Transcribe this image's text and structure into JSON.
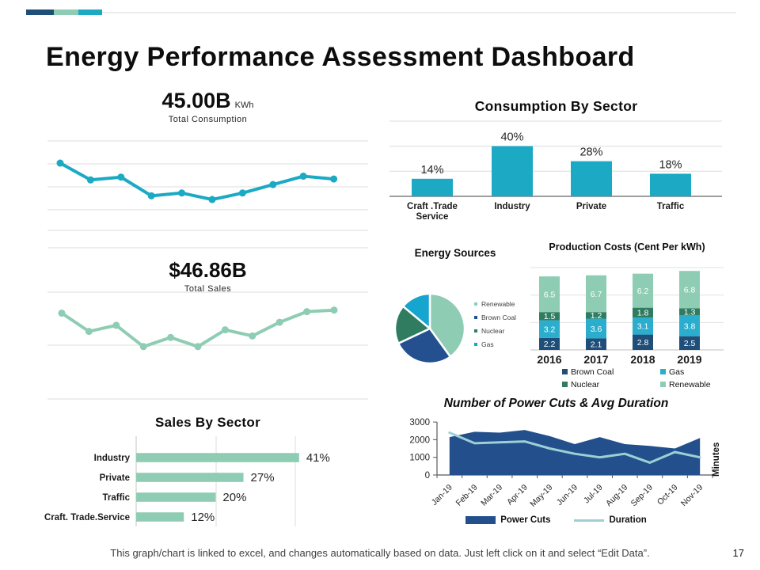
{
  "slide": {
    "title": "Energy Performance Assessment Dashboard",
    "footer_note": "This graph/chart is linked to excel, and changes automatically based on data. Just left click on it and select “Edit Data”.",
    "page_number": "17",
    "accent_bar_colors": [
      "#1f4e79",
      "#8ecdb3",
      "#1ba9c4"
    ]
  },
  "colors": {
    "teal": "#1ba9c4",
    "light_green": "#8ecdb3",
    "navy": "#23508c",
    "dark_navy": "#1f4e79",
    "dark_green": "#2f7c61",
    "cyan": "#16a5ce",
    "pale_teal": "#9cd0d4",
    "gridline": "#dcdcdc",
    "axis_gray": "#595959"
  },
  "chart_data": [
    {
      "id": "total_consumption_trend",
      "type": "line",
      "title": "45.00B",
      "unit": "KWh",
      "subtitle": "Total Consumption",
      "values": [
        72,
        54,
        57,
        37,
        40,
        33,
        40,
        49,
        58,
        55
      ],
      "scale": "relative-estimate 0-100 (sparkline, axis unlabeled)",
      "grid": "horizontal",
      "color": "#1ba9c4"
    },
    {
      "id": "consumption_by_sector",
      "type": "bar",
      "title": "Consumption By Sector",
      "categories": [
        "Craft .Trade Service",
        "Industry",
        "Private",
        "Traffic"
      ],
      "values": [
        14,
        40,
        28,
        18
      ],
      "labels": [
        "14%",
        "40%",
        "28%",
        "18%"
      ],
      "ylim": [
        0,
        60
      ],
      "grid": "horizontal every 20",
      "color": "#1ba9c4"
    },
    {
      "id": "total_sales_trend",
      "type": "line",
      "title": "$46.86B",
      "subtitle": "Total Sales",
      "values": [
        57,
        45,
        49,
        35,
        41,
        35,
        46,
        42,
        51,
        58,
        59
      ],
      "scale": "relative-estimate 0-100 (sparkline, axis unlabeled)",
      "grid": "horizontal",
      "color": "#8ecdb3"
    },
    {
      "id": "energy_sources",
      "type": "pie",
      "title": "Energy Sources",
      "labels": [
        "Renewable",
        "Brown Coal",
        "Nuclear",
        "Gas"
      ],
      "values": [
        40,
        28,
        18,
        14
      ],
      "scale": "percent-estimate from slice angles",
      "colors": [
        "#8ecdb3",
        "#24508f",
        "#2f7c61",
        "#16a5ce"
      ],
      "legend_position": "right"
    },
    {
      "id": "production_costs",
      "type": "bar",
      "stacked": true,
      "title": "Production Costs (Cent Per kWh)",
      "categories": [
        "2016",
        "2017",
        "2018",
        "2019"
      ],
      "series": [
        {
          "name": "Brown Coal",
          "color": "#1f4e79",
          "values": [
            2.2,
            2.1,
            2.8,
            2.5
          ]
        },
        {
          "name": "Gas",
          "color": "#2badcd",
          "values": [
            3.2,
            3.6,
            3.1,
            3.8
          ]
        },
        {
          "name": "Nuclear",
          "color": "#2f7c61",
          "values": [
            1.5,
            1.2,
            1.8,
            1.3
          ]
        },
        {
          "name": "Renewable",
          "color": "#8ecdb3",
          "values": [
            6.5,
            6.7,
            6.2,
            6.8
          ]
        }
      ],
      "legend_position": "bottom"
    },
    {
      "id": "sales_by_sector",
      "type": "bar",
      "orientation": "horizontal",
      "title": "Sales By Sector",
      "categories": [
        "Industry",
        "Private",
        "Traffic",
        "Craft. Trade.Service"
      ],
      "values": [
        41,
        27,
        20,
        12
      ],
      "labels": [
        "41%",
        "27%",
        "20%",
        "12%"
      ],
      "xlim": [
        0,
        45
      ],
      "gridlines_at": [
        0,
        20,
        40
      ],
      "color": "#8ecdb3"
    },
    {
      "id": "power_cuts_and_duration",
      "type": "area",
      "title": "Number of Power Cuts & Avg Duration",
      "x": [
        "Jan-19",
        "Feb-19",
        "Mar-19",
        "Apr-19",
        "May-19",
        "Jun-19",
        "Jul-19",
        "Aug-19",
        "Sep-19",
        "Oct-19",
        "Nov-19"
      ],
      "series": [
        {
          "name": "Power Cuts",
          "type": "area",
          "color": "#23508c",
          "values": [
            2150,
            2450,
            2400,
            2550,
            2200,
            1750,
            2150,
            1750,
            1650,
            1500,
            2100
          ]
        },
        {
          "name": "Duration",
          "type": "line",
          "color": "#9cd0d4",
          "values": [
            2400,
            1800,
            1850,
            1900,
            1500,
            1200,
            1000,
            1200,
            700,
            1300,
            1000
          ]
        }
      ],
      "ylim": [
        0,
        3000
      ],
      "yticks": [
        0,
        1000,
        2000,
        3000
      ],
      "ylabel_right": "Minutes",
      "legend_position": "bottom"
    }
  ]
}
